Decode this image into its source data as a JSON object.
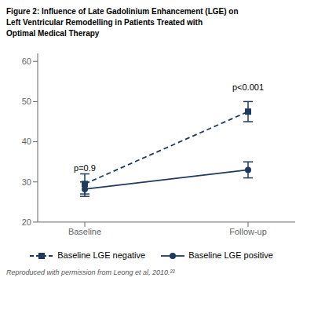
{
  "chart_data": {
    "type": "line",
    "title": "Figure 2: Influence of Late Gadolinium Enhancement (LGE) on\nLeft Ventricular Remodelling in Patients Treated with\nOptimal Medical Therapy",
    "categories": [
      "Baseline",
      "Follow-up"
    ],
    "series": [
      {
        "name": "Baseline LGE negative",
        "color": "#1e3a5f",
        "values": [
          29.5,
          47.5
        ],
        "errors": [
          2.5,
          2.5
        ],
        "line_style": "dashed",
        "marker": "square"
      },
      {
        "name": "Baseline LGE positive",
        "color": "#1e3a5f",
        "values": [
          28.2,
          33.0
        ],
        "errors": [
          1.8,
          2.0
        ],
        "line_style": "solid",
        "marker": "circle"
      }
    ],
    "annotations": [
      {
        "text": "p=0.9",
        "category": "Baseline",
        "y": 32.0
      },
      {
        "text": "p<0.001",
        "category": "Follow-up",
        "y": 52.0
      }
    ],
    "ylim": [
      20,
      62
    ],
    "yticks": [
      20,
      30,
      40,
      50,
      60
    ],
    "grid": false,
    "legend": "bottom",
    "footnote": "Reproduced with permission from Leong et al, 2010.²²"
  }
}
